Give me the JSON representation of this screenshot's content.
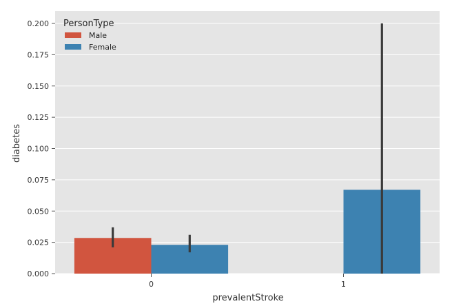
{
  "chart_data": {
    "type": "bar",
    "title": "",
    "xlabel": "prevalentStroke",
    "ylabel": "diabetes",
    "categories": [
      "0",
      "1"
    ],
    "ylim": [
      0,
      0.2
    ],
    "yticks": [
      0.0,
      0.025,
      0.05,
      0.075,
      0.1,
      0.125,
      0.15,
      0.175,
      0.2
    ],
    "ytick_labels": [
      "0.000",
      "0.025",
      "0.050",
      "0.075",
      "0.100",
      "0.125",
      "0.150",
      "0.175",
      "0.200"
    ],
    "legend": {
      "title": "PersonType",
      "placement": "top-left"
    },
    "grid": true,
    "series": [
      {
        "name": "Male",
        "color": "#d1553f",
        "values": [
          0.0285,
          null
        ],
        "error_low": [
          0.021,
          null
        ],
        "error_high": [
          0.037,
          null
        ]
      },
      {
        "name": "Female",
        "color": "#3d82b1",
        "values": [
          0.023,
          0.067
        ],
        "error_low": [
          0.017,
          0.0
        ],
        "error_high": [
          0.031,
          0.2
        ]
      }
    ]
  }
}
